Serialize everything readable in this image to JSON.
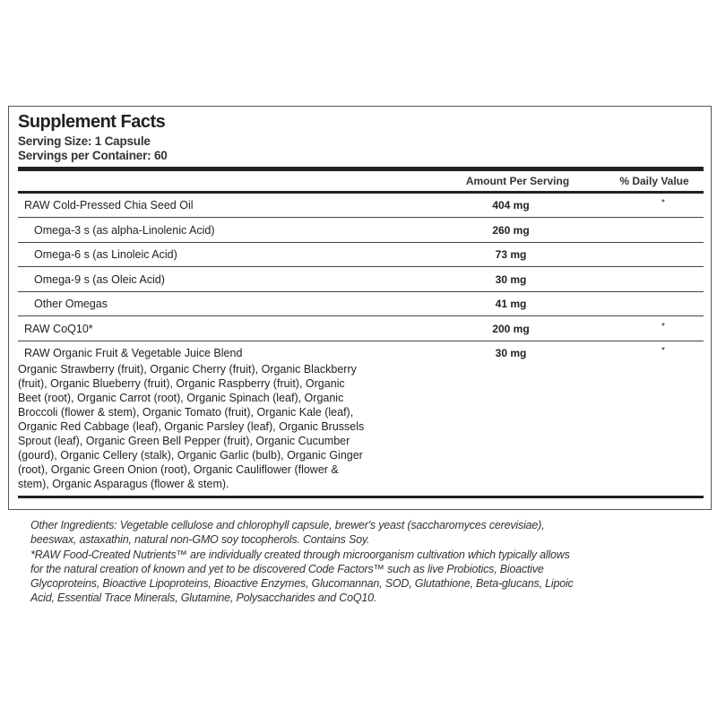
{
  "title": "Supplement Facts",
  "serving_size": "Serving Size: 1 Capsule",
  "servings_per_container": "Servings per Container: 60",
  "headers": {
    "amount": "Amount Per Serving",
    "daily_value": "% Daily Value"
  },
  "rows": [
    {
      "name": "RAW Cold-Pressed Chia Seed Oil",
      "amount": "404 mg",
      "dv": "*",
      "indent": false
    },
    {
      "name": "Omega-3 s (as alpha-Linolenic Acid)",
      "amount": "260 mg",
      "dv": "",
      "indent": true
    },
    {
      "name": "Omega-6 s (as Linoleic Acid)",
      "amount": "73 mg",
      "dv": "",
      "indent": true
    },
    {
      "name": "Omega-9 s (as Oleic Acid)",
      "amount": "30 mg",
      "dv": "",
      "indent": true
    },
    {
      "name": "Other Omegas",
      "amount": "41 mg",
      "dv": "",
      "indent": true
    },
    {
      "name": "RAW CoQ10*",
      "amount": "200 mg",
      "dv": "*",
      "indent": false
    }
  ],
  "blend": {
    "name": "RAW Organic Fruit & Vegetable Juice Blend",
    "amount": "30 mg",
    "dv": "*",
    "lines": [
      "Organic Strawberry (fruit), Organic Cherry (fruit), Organic Blackberry",
      "(fruit), Organic Blueberry (fruit), Organic Raspberry (fruit), Organic",
      "Beet (root), Organic Carrot (root), Organic Spinach (leaf), Organic",
      "Broccoli (flower & stem), Organic Tomato (fruit), Organic Kale (leaf),",
      "Organic Red Cabbage (leaf), Organic Parsley (leaf), Organic Brussels",
      "Sprout (leaf), Organic Green Bell Pepper (fruit), Organic Cucumber",
      "(gourd), Organic Cellery (stalk), Organic Garlic (bulb), Organic Ginger",
      "(root), Organic Green Onion (root), Organic Cauliflower (flower &",
      "stem), Organic Asparagus (flower & stem)."
    ]
  },
  "footnote_lines": [
    "Other Ingredients: Vegetable cellulose and chlorophyll capsule, brewer's yeast (saccharomyces cerevisiae),",
    "beeswax, astaxathin, natural non-GMO soy tocopherols. Contains Soy.",
    "*RAW Food-Created Nutrients™ are individually created through microorganism cultivation which typically allows",
    "for the natural creation of known and yet to be discovered Code Factors™ such as live Probiotics, Bioactive",
    "Glycoproteins, Bioactive Lipoproteins, Bioactive Enzymes, Glucomannan, SOD, Glutathione, Beta-glucans, Lipoic",
    "Acid, Essential Trace Minerals, Glutamine, Polysaccharides and CoQ10."
  ]
}
